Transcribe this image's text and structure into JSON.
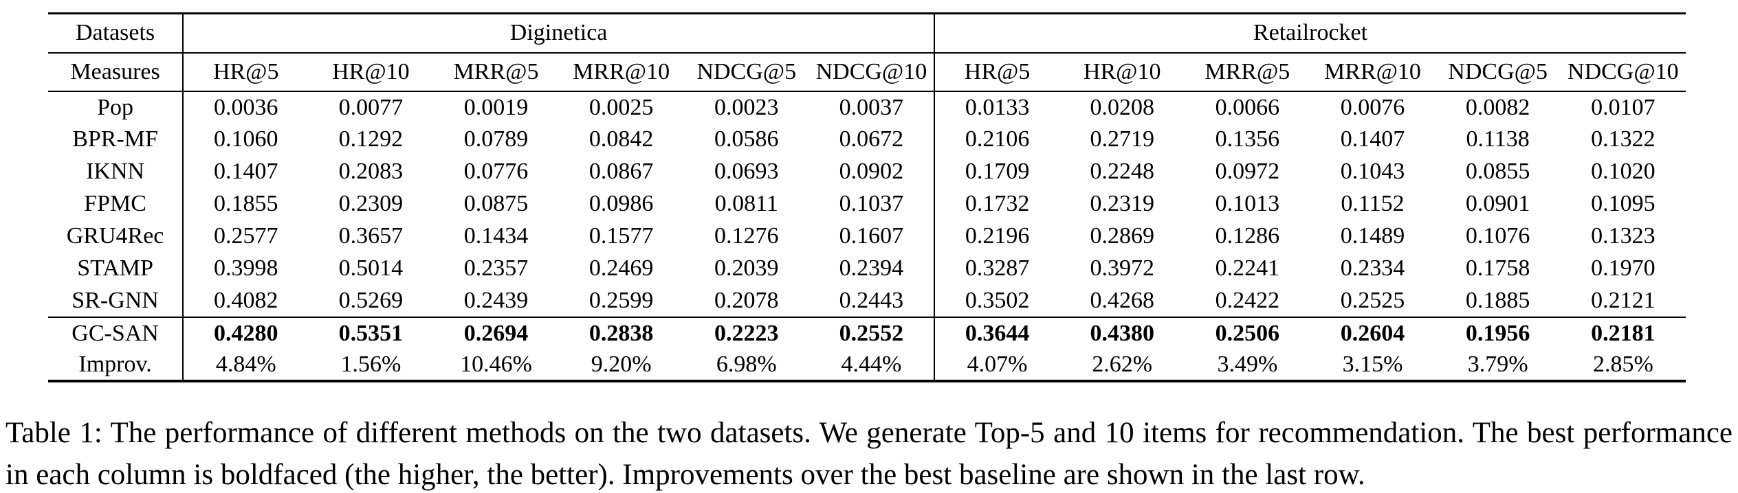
{
  "table": {
    "header": {
      "datasets_label": "Datasets",
      "measures_label": "Measures",
      "group1": "Diginetica",
      "group2": "Retailrocket",
      "measures": [
        "HR@5",
        "HR@10",
        "MRR@5",
        "MRR@10",
        "NDCG@5",
        "NDCG@10",
        "HR@5",
        "HR@10",
        "MRR@5",
        "MRR@10",
        "NDCG@5",
        "NDCG@10"
      ]
    },
    "rows": [
      {
        "method": "Pop",
        "values": [
          "0.0036",
          "0.0077",
          "0.0019",
          "0.0025",
          "0.0023",
          "0.0037",
          "0.0133",
          "0.0208",
          "0.0066",
          "0.0076",
          "0.0082",
          "0.0107"
        ]
      },
      {
        "method": "BPR-MF",
        "values": [
          "0.1060",
          "0.1292",
          "0.0789",
          "0.0842",
          "0.0586",
          "0.0672",
          "0.2106",
          "0.2719",
          "0.1356",
          "0.1407",
          "0.1138",
          "0.1322"
        ]
      },
      {
        "method": "IKNN",
        "values": [
          "0.1407",
          "0.2083",
          "0.0776",
          "0.0867",
          "0.0693",
          "0.0902",
          "0.1709",
          "0.2248",
          "0.0972",
          "0.1043",
          "0.0855",
          "0.1020"
        ]
      },
      {
        "method": "FPMC",
        "values": [
          "0.1855",
          "0.2309",
          "0.0875",
          "0.0986",
          "0.0811",
          "0.1037",
          "0.1732",
          "0.2319",
          "0.1013",
          "0.1152",
          "0.0901",
          "0.1095"
        ]
      },
      {
        "method": "GRU4Rec",
        "values": [
          "0.2577",
          "0.3657",
          "0.1434",
          "0.1577",
          "0.1276",
          "0.1607",
          "0.2196",
          "0.2869",
          "0.1286",
          "0.1489",
          "0.1076",
          "0.1323"
        ]
      },
      {
        "method": "STAMP",
        "values": [
          "0.3998",
          "0.5014",
          "0.2357",
          "0.2469",
          "0.2039",
          "0.2394",
          "0.3287",
          "0.3972",
          "0.2241",
          "0.2334",
          "0.1758",
          "0.1970"
        ]
      },
      {
        "method": "SR-GNN",
        "values": [
          "0.4082",
          "0.5269",
          "0.2439",
          "0.2599",
          "0.2078",
          "0.2443",
          "0.3502",
          "0.4268",
          "0.2422",
          "0.2525",
          "0.1885",
          "0.2121"
        ]
      },
      {
        "method": "GC-SAN",
        "values": [
          "0.4280",
          "0.5351",
          "0.2694",
          "0.2838",
          "0.2223",
          "0.2552",
          "0.3644",
          "0.4380",
          "0.2506",
          "0.2604",
          "0.1956",
          "0.2181"
        ]
      },
      {
        "method": "Improv.",
        "values": [
          "4.84%",
          "1.56%",
          "10.46%",
          "9.20%",
          "6.98%",
          "4.44%",
          "4.07%",
          "2.62%",
          "3.49%",
          "3.15%",
          "3.79%",
          "2.85%"
        ]
      }
    ]
  },
  "caption": "Table 1: The performance of different methods on the two datasets. We generate Top-5 and 10 items for recommendation. The best performance in each column is boldfaced (the higher, the better). Improvements over the best baseline are shown in the last row."
}
